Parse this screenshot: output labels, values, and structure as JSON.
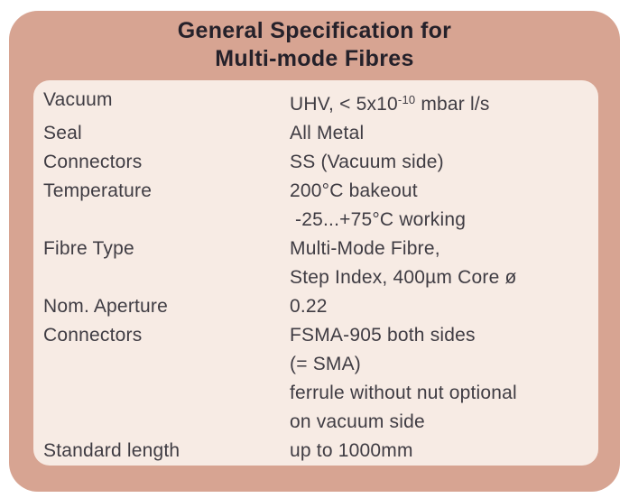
{
  "title": {
    "line1": "General Specification for",
    "line2": "Multi-mode Fibres"
  },
  "colors": {
    "page_bg": "#ffffff",
    "card_bg": "#d7a492",
    "panel_bg": "#f7ebe4",
    "title_color": "#25212a",
    "text_color": "#3f3c43"
  },
  "rows": [
    {
      "label": "Vacuum",
      "value_pre": "UHV, < 5x10",
      "value_sup": "-10",
      "value_post": " mbar l/s"
    },
    {
      "label": "Seal",
      "lines": [
        "All Metal"
      ]
    },
    {
      "label": "Connectors",
      "lines": [
        "SS (Vacuum side)"
      ]
    },
    {
      "label": "Temperature",
      "lines": [
        "200°C bakeout",
        " -25...+75°C working"
      ]
    },
    {
      "label": "Fibre Type",
      "lines": [
        "Multi-Mode Fibre,",
        "Step Index, 400µm Core ø"
      ]
    },
    {
      "label": "Nom. Aperture",
      "lines": [
        "0.22"
      ]
    },
    {
      "label": "Connectors",
      "lines": [
        "FSMA-905 both sides",
        "(= SMA)",
        "ferrule without nut optional",
        "on vacuum side"
      ]
    },
    {
      "label": "Standard length",
      "lines": [
        "up to 1000mm"
      ]
    }
  ]
}
